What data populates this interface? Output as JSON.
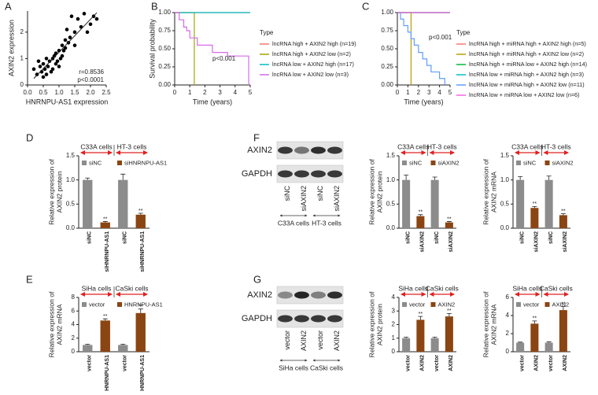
{
  "chart_data": [
    {
      "type": "scatter",
      "panel": "A",
      "xlabel": "HNRNPU-AS1 expression",
      "ylabel": "AXIN2 expression",
      "x": [
        0.2,
        0.3,
        0.35,
        0.4,
        0.45,
        0.5,
        0.5,
        0.55,
        0.6,
        0.6,
        0.65,
        0.7,
        0.75,
        0.8,
        0.8,
        0.85,
        0.9,
        0.9,
        0.95,
        1.0,
        1.0,
        1.05,
        1.1,
        1.1,
        1.15,
        1.2,
        1.2,
        1.25,
        1.3,
        1.35,
        1.4,
        1.5,
        1.5,
        1.6,
        1.7,
        1.8,
        1.9,
        2.0,
        2.1,
        2.2
      ],
      "values": [
        0.6,
        0.4,
        0.9,
        0.7,
        0.5,
        0.3,
        0.8,
        0.6,
        0.4,
        1.0,
        0.7,
        0.9,
        0.5,
        1.0,
        0.6,
        1.1,
        0.8,
        1.2,
        0.9,
        1.3,
        0.7,
        1.0,
        1.5,
        1.1,
        1.3,
        1.4,
        1.7,
        2.1,
        1.6,
        1.8,
        2.6,
        1.5,
        2.0,
        2.5,
        2.2,
        2.7,
        2.0,
        2.3,
        2.6,
        2.5
      ],
      "color": "#000000",
      "fit_line": true,
      "xlim": [
        0,
        2.5
      ],
      "xticks": [
        {
          "value": 0,
          "label": "0.0"
        },
        0.5,
        {
          "value": 1,
          "label": "1.0"
        },
        1.5,
        {
          "value": 2,
          "label": "2.0"
        },
        2.5
      ],
      "ylim": [
        0,
        2.8
      ],
      "yticks": [
        0,
        1,
        2
      ],
      "annotations": [
        "r=0.8536",
        "p<0.0001"
      ]
    },
    {
      "type": "survival",
      "panel": "B",
      "ylabel": "Survival probability",
      "xlabel": "Time (years)",
      "legend_title": "Type",
      "annotations": [
        "p<0.001"
      ],
      "xlim": [
        0,
        5
      ],
      "xticks": [
        0,
        1,
        2,
        3,
        4,
        5
      ],
      "ylim": [
        0,
        1
      ],
      "yticks": [
        {
          "value": 0,
          "label": "0.00"
        },
        0.25,
        {
          "value": 0.5,
          "label": "0.50"
        },
        0.75,
        {
          "value": 1,
          "label": "1.00"
        }
      ],
      "series": [
        {
          "name": "lncRNA high + AXIN2 high (n=19)",
          "color": "#f8766d",
          "x": [
            0,
            5
          ],
          "values": [
            1,
            1
          ]
        },
        {
          "name": "lncRNA high + AXIN2 low (n=2)",
          "color": "#a3a500",
          "x": [
            0,
            1.3
          ],
          "values": [
            1,
            0
          ]
        },
        {
          "name": "lncRNA low + AXIN2 high (n=17)",
          "color": "#00bfc4",
          "x": [
            0,
            5
          ],
          "values": [
            1,
            1
          ]
        },
        {
          "name": "lncRNA low + AXIN2 low (n=3)",
          "color": "#d56be8",
          "x": [
            0,
            0.3,
            0.6,
            0.8,
            1.0,
            1.5,
            2.5,
            3.5,
            4.9
          ],
          "values": [
            1,
            0.9,
            0.8,
            0.75,
            0.65,
            0.55,
            0.45,
            0.4,
            0.0
          ]
        }
      ]
    },
    {
      "type": "survival",
      "panel": "C",
      "xlabel": "Time (years)",
      "legend_title": "Type",
      "annotations": [
        "p<0.001"
      ],
      "xlim": [
        0,
        5
      ],
      "xticks": [
        0,
        1,
        2,
        3,
        4,
        5
      ],
      "ylim": [
        0,
        1
      ],
      "yticks": [
        {
          "value": 0,
          "label": "0.00"
        },
        0.25,
        {
          "value": 0.5,
          "label": "0.50"
        },
        0.75,
        {
          "value": 1,
          "label": "1.00"
        }
      ],
      "series": [
        {
          "name": "lncRNA high + miRNA high + AXIN2 high (n=5)",
          "color": "#f8766d",
          "x": [
            0,
            5
          ],
          "values": [
            1,
            1
          ]
        },
        {
          "name": "lncRNA high + miRNA high + AXIN2 low (n=2)",
          "color": "#b79f00",
          "x": [
            0,
            1.3
          ],
          "values": [
            1,
            0
          ]
        },
        {
          "name": "lncRNA high + miRNA low + AXIN2 high (n=14)",
          "color": "#00ba38",
          "x": [
            0,
            5
          ],
          "values": [
            1,
            1
          ]
        },
        {
          "name": "lncRNA low + miRNA high + AXIN2 high (n=3)",
          "color": "#00bfc4",
          "x": [
            0,
            5
          ],
          "values": [
            1,
            1
          ]
        },
        {
          "name": "lncRNA low + miRNA high + AXIN2 low (n=11)",
          "color": "#619cff",
          "x": [
            0,
            0.3,
            0.6,
            1.0,
            1.3,
            1.6,
            2.0,
            2.4,
            2.8,
            3.2,
            4.0,
            4.5
          ],
          "values": [
            1,
            0.91,
            0.82,
            0.73,
            0.64,
            0.55,
            0.45,
            0.36,
            0.27,
            0.18,
            0.09,
            0.0
          ]
        },
        {
          "name": "lncRNA low + miRNA low + AXIN2 low (n=6)",
          "color": "#f564e3",
          "x": [
            0,
            5
          ],
          "values": [
            1,
            1
          ]
        }
      ]
    },
    {
      "type": "groupbar",
      "panel": "D",
      "ylabel": [
        "Relative expression of",
        "AXIN2 protein"
      ],
      "groups": [
        "C33A cells",
        "HT-3 cells"
      ],
      "ylim": [
        0,
        1.5
      ],
      "yticks": [
        {
          "value": 0,
          "label": "0.0"
        },
        0.5,
        {
          "value": 1,
          "label": "1.0"
        },
        1.5
      ],
      "series": [
        {
          "name": "siNC",
          "color": "#8c8c8c",
          "values": [
            1.0,
            1.0
          ],
          "errors": [
            0.04,
            0.12
          ]
        },
        {
          "name": "siHNRNPU-AS1",
          "color": "#8b4513",
          "values": [
            0.12,
            0.28
          ],
          "errors": [
            0.02,
            0.03
          ],
          "significance": [
            "**",
            "**"
          ]
        }
      ]
    },
    {
      "type": "groupbar",
      "ylabel": [
        "Relative expression of",
        "AXIN2 protein"
      ],
      "groups": [
        "C33A cells",
        "HT-3 cells"
      ],
      "ylim": [
        0,
        1.5
      ],
      "yticks": [
        {
          "value": 0,
          "label": "0.0"
        },
        0.5,
        {
          "value": 1,
          "label": "1.0"
        },
        1.5
      ],
      "series": [
        {
          "name": "siNC",
          "color": "#8c8c8c",
          "values": [
            1.0,
            1.0
          ],
          "errors": [
            0.1,
            0.06
          ]
        },
        {
          "name": "siAXIN2",
          "color": "#8b4513",
          "values": [
            0.25,
            0.12
          ],
          "errors": [
            0.03,
            0.02
          ],
          "significance": [
            "**",
            "**"
          ]
        }
      ]
    },
    {
      "type": "groupbar",
      "ylabel": [
        "Relative expression of",
        "AXIN2 mRNA"
      ],
      "groups": [
        "C33A cells",
        "HT-3 cells"
      ],
      "ylim": [
        0,
        1.5
      ],
      "yticks": [
        {
          "value": 0,
          "label": "0.0"
        },
        0.5,
        {
          "value": 1,
          "label": "1.0"
        },
        1.5
      ],
      "series": [
        {
          "name": "siNC",
          "color": "#8c8c8c",
          "values": [
            1.0,
            1.0
          ],
          "errors": [
            0.07,
            0.08
          ]
        },
        {
          "name": "siAXIN2",
          "color": "#8b4513",
          "values": [
            0.42,
            0.27
          ],
          "errors": [
            0.03,
            0.03
          ],
          "significance": [
            "**",
            "**"
          ]
        }
      ]
    },
    {
      "type": "groupbar",
      "panel": "E",
      "ylabel": [
        "Relative expression of",
        "AXIN2 mRNA"
      ],
      "groups": [
        "SiHa cells",
        "CaSki cells"
      ],
      "ylim": [
        0,
        8
      ],
      "yticks": [
        0,
        2,
        4,
        6,
        8
      ],
      "series": [
        {
          "name": "vector",
          "color": "#8c8c8c",
          "values": [
            1.0,
            1.0
          ],
          "errors": [
            0.1,
            0.12
          ]
        },
        {
          "name": "HNRNPU-AS1",
          "color": "#8b4513",
          "values": [
            4.6,
            5.7
          ],
          "errors": [
            0.25,
            0.6
          ],
          "significance": [
            "**",
            "**"
          ]
        }
      ]
    },
    {
      "type": "groupbar",
      "ylabel": [
        "Relative expression of",
        "AXIN2 protein"
      ],
      "groups": [
        "SiHa cells",
        "CaSki cells"
      ],
      "ylim": [
        0,
        4
      ],
      "yticks": [
        0,
        1,
        2,
        3,
        4
      ],
      "series": [
        {
          "name": "vector",
          "color": "#8c8c8c",
          "values": [
            1.0,
            1.0
          ],
          "errors": [
            0.08,
            0.08
          ]
        },
        {
          "name": "AXIN2",
          "color": "#8b4513",
          "values": [
            2.35,
            2.6
          ],
          "errors": [
            0.25,
            0.22
          ],
          "significance": [
            "**",
            "**"
          ]
        }
      ]
    },
    {
      "type": "groupbar",
      "ylabel": [
        "Relative expression of",
        "AXIN2 mRNA"
      ],
      "groups": [
        "SiHa cells",
        "CaSki cells"
      ],
      "ylim": [
        0,
        6
      ],
      "yticks": [
        0,
        2,
        4,
        6
      ],
      "series": [
        {
          "name": "vector",
          "color": "#8c8c8c",
          "values": [
            1.0,
            1.0
          ],
          "errors": [
            0.06,
            0.08
          ]
        },
        {
          "name": "AXIN2",
          "color": "#8b4513",
          "values": [
            3.1,
            4.6
          ],
          "errors": [
            0.3,
            0.4
          ],
          "significance": [
            "**",
            "**"
          ]
        }
      ]
    }
  ],
  "blots": [
    {
      "panel": "F",
      "rows": [
        "AXIN2",
        "GAPDH"
      ],
      "lanes": [
        "siNC",
        "siAXIN2",
        "siNC",
        "siAXIN2"
      ],
      "groups": [
        "C33A cells",
        "HT-3 cells"
      ]
    },
    {
      "panel": "G",
      "rows": [
        "AXIN2",
        "GAPDH"
      ],
      "lanes": [
        "vector",
        "AXIN2",
        "vector",
        "AXIN2"
      ],
      "groups": [
        "SiHa cells",
        "CaSki cells"
      ]
    }
  ]
}
